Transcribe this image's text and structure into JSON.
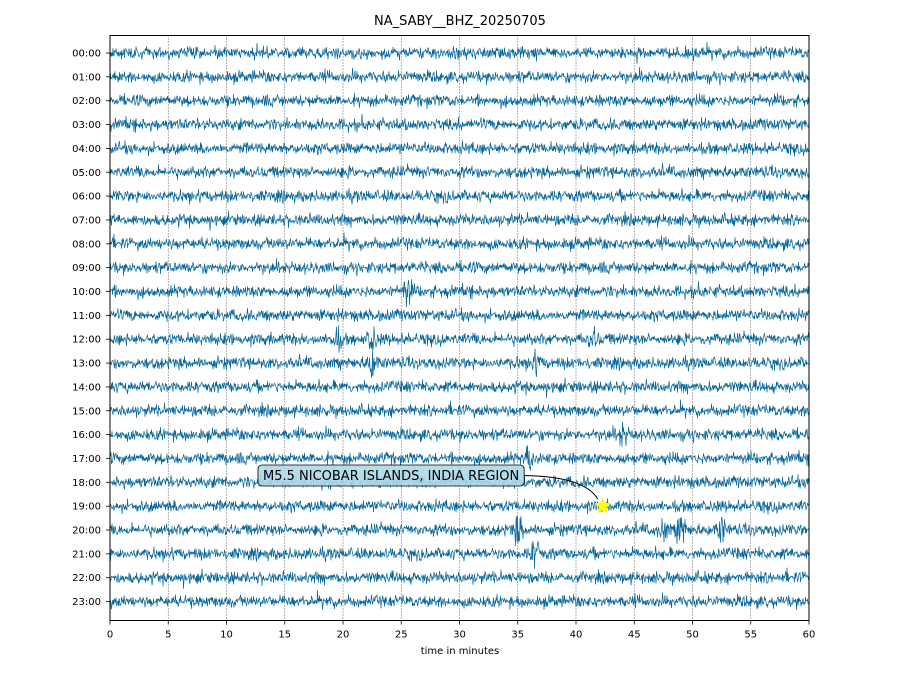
{
  "chart_data": {
    "type": "line",
    "title": "NA_SABY__BHZ_20250705",
    "xlabel": "time in minutes",
    "ylabel": "",
    "xlim": [
      0,
      60
    ],
    "x_ticks": [
      0,
      5,
      10,
      15,
      20,
      25,
      30,
      35,
      40,
      45,
      50,
      55,
      60
    ],
    "rows": [
      "00:00",
      "01:00",
      "02:00",
      "03:00",
      "04:00",
      "05:00",
      "06:00",
      "07:00",
      "08:00",
      "09:00",
      "10:00",
      "11:00",
      "12:00",
      "13:00",
      "14:00",
      "15:00",
      "16:00",
      "17:00",
      "18:00",
      "19:00",
      "20:00",
      "21:00",
      "22:00",
      "23:00"
    ],
    "trace_color": "#08679a",
    "grid": "vertical dotted at every 5 minutes",
    "events": [
      {
        "row": 10,
        "minute": 25.5,
        "strength": 3.0
      },
      {
        "row": 12,
        "minute": 19.5,
        "strength": 1.8
      },
      {
        "row": 12,
        "minute": 22.5,
        "strength": 2.0
      },
      {
        "row": 12,
        "minute": 41.5,
        "strength": 1.8
      },
      {
        "row": 13,
        "minute": 22.5,
        "strength": 2.6
      },
      {
        "row": 13,
        "minute": 36.5,
        "strength": 1.7
      },
      {
        "row": 16,
        "minute": 44.0,
        "strength": 1.8
      },
      {
        "row": 17,
        "minute": 36.0,
        "strength": 2.0
      },
      {
        "row": 20,
        "minute": 35.0,
        "strength": 3.0
      },
      {
        "row": 20,
        "minute": 49.0,
        "strength": 3.2
      },
      {
        "row": 20,
        "minute": 52.5,
        "strength": 2.0
      },
      {
        "row": 20,
        "minute": 47.5,
        "strength": 1.6
      },
      {
        "row": 21,
        "minute": 36.5,
        "strength": 2.6
      }
    ],
    "annotation": {
      "text": "M5.5 NICOBAR ISLANDS, INDIA REGION",
      "marker": "star",
      "marker_color": "#ffff00",
      "row": 19,
      "minute": 42.3
    }
  }
}
